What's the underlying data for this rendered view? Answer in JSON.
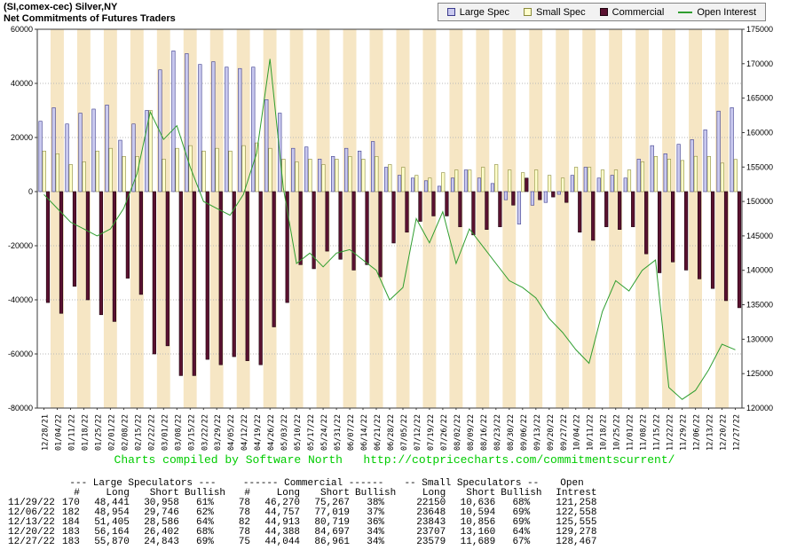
{
  "header": {
    "title_line1": "(SI,comex-cec) Silver,NY",
    "title_line2": "Net Commitments of Futures Traders"
  },
  "credit": {
    "text": "Charts compiled by Software North",
    "url": "http://cotpricecharts.com/commitmentscurrent/",
    "color": "#00cc00"
  },
  "chart_data": {
    "type": "combo",
    "title": "Net Commitments of Futures Traders",
    "left_axis": {
      "min": -80000,
      "max": 60000,
      "ticks": [
        60000,
        40000,
        20000,
        0,
        -20000,
        -40000,
        -60000,
        -80000
      ]
    },
    "right_axis": {
      "min": 120000,
      "max": 175000,
      "ticks": [
        175000,
        170000,
        165000,
        160000,
        155000,
        150000,
        145000,
        140000,
        135000,
        130000,
        125000,
        120000
      ]
    },
    "colors": {
      "stripe": "#f6e6c4",
      "grid": "#b8b8b8",
      "axis": "#3a3a3a",
      "background": "#ffffff"
    },
    "categories": [
      "12/28/21",
      "01/04/22",
      "01/11/22",
      "01/18/22",
      "01/25/22",
      "02/01/22",
      "02/08/22",
      "02/15/22",
      "02/22/22",
      "03/01/22",
      "03/08/22",
      "03/15/22",
      "03/22/22",
      "03/29/22",
      "04/05/22",
      "04/12/22",
      "04/19/22",
      "04/26/22",
      "05/03/22",
      "05/10/22",
      "05/17/22",
      "05/24/22",
      "05/31/22",
      "06/07/22",
      "06/14/22",
      "06/21/22",
      "06/28/22",
      "07/05/22",
      "07/12/22",
      "07/19/22",
      "07/26/22",
      "08/02/22",
      "08/09/22",
      "08/16/22",
      "08/23/22",
      "08/30/22",
      "09/06/22",
      "09/13/22",
      "09/20/22",
      "09/27/22",
      "10/04/22",
      "10/11/22",
      "10/18/22",
      "10/25/22",
      "11/01/22",
      "11/08/22",
      "11/15/22",
      "11/22/22",
      "11/29/22",
      "12/06/22",
      "12/13/22",
      "12/20/22",
      "12/27/22"
    ],
    "series": [
      {
        "name": "Large Spec",
        "slug": "large-spec",
        "type": "bar",
        "color": "#c9c9ef",
        "border": "#3a3a8c",
        "values": [
          26000,
          31000,
          25000,
          29000,
          30500,
          32000,
          19000,
          25000,
          30000,
          45000,
          52000,
          51000,
          47000,
          48000,
          46000,
          45500,
          46000,
          34000,
          29000,
          16000,
          16500,
          12000,
          13000,
          16000,
          15000,
          18500,
          9000,
          6000,
          5000,
          4000,
          2000,
          5000,
          8000,
          5000,
          3000,
          -3000,
          -12000,
          -5000,
          -4000,
          -1000,
          6000,
          9000,
          5000,
          6000,
          5000,
          12000,
          17000,
          14000,
          17483,
          19208,
          22819,
          29762,
          31027
        ]
      },
      {
        "name": "Small Spec",
        "slug": "small-spec",
        "type": "bar",
        "color": "#ffffcc",
        "border": "#8a8a3a",
        "values": [
          15000,
          14000,
          10000,
          11000,
          15000,
          16000,
          13000,
          13000,
          30000,
          12000,
          16000,
          17000,
          15000,
          16000,
          15000,
          17000,
          18000,
          16000,
          12000,
          11000,
          12000,
          10000,
          12000,
          13000,
          12000,
          13000,
          10000,
          9000,
          6000,
          5000,
          7000,
          8000,
          8000,
          9000,
          10000,
          8000,
          7000,
          8000,
          6000,
          5000,
          9000,
          9000,
          8000,
          8000,
          8000,
          11000,
          13000,
          12000,
          11514,
          13054,
          12987,
          10547,
          11890
        ]
      },
      {
        "name": "Commercial",
        "slug": "commercial",
        "type": "bar",
        "color": "#5a1130",
        "border": "#1f0510",
        "values": [
          -41000,
          -45000,
          -35000,
          -40000,
          -45500,
          -48000,
          -32000,
          -38000,
          -60000,
          -57000,
          -68000,
          -68000,
          -62000,
          -64000,
          -61000,
          -62500,
          -64000,
          -50000,
          -41000,
          -27000,
          -28500,
          -22000,
          -25000,
          -29000,
          -27000,
          -31500,
          -19000,
          -15000,
          -11000,
          -9000,
          -9000,
          -13000,
          -16000,
          -14000,
          -13000,
          -5000,
          5000,
          -3000,
          -2000,
          -4000,
          -15000,
          -18000,
          -13000,
          -14000,
          -13000,
          -23000,
          -30000,
          -26000,
          -28997,
          -32262,
          -35806,
          -40309,
          -42917
        ]
      },
      {
        "name": "Open Interest",
        "slug": "open-interest",
        "type": "line",
        "axis": "right",
        "color": "#2f9e2f",
        "values": [
          151000,
          149000,
          147000,
          146000,
          145000,
          146000,
          149000,
          154000,
          163000,
          159000,
          161000,
          155000,
          150000,
          149000,
          148000,
          151000,
          157000,
          170700,
          152000,
          141000,
          142500,
          140500,
          142500,
          143000,
          141500,
          140000,
          135700,
          137500,
          147500,
          144000,
          148500,
          141000,
          146000,
          143500,
          141000,
          138500,
          137500,
          136000,
          133000,
          131000,
          128500,
          126500,
          134000,
          138500,
          137000,
          140000,
          141500,
          123000,
          121258,
          122558,
          125555,
          129278,
          128467
        ]
      }
    ]
  },
  "table": {
    "group_headers": [
      "--- Large Speculators ---",
      "------ Commercial ------",
      "-- Small Speculators --",
      "Open"
    ],
    "col_headers": [
      "#",
      "Long",
      "Short",
      "Bullish",
      "#",
      "Long",
      "Short",
      "Bullish",
      "Long",
      "Short",
      "Bullish",
      "Intrest"
    ],
    "rows": [
      [
        "11/29/22",
        "170",
        "48,441",
        "30,958",
        "61%",
        "78",
        "46,270",
        "75,267",
        "38%",
        "22150",
        "10,636",
        "68%",
        "121,258"
      ],
      [
        "12/06/22",
        "182",
        "48,954",
        "29,746",
        "62%",
        "78",
        "44,757",
        "77,019",
        "37%",
        "23648",
        "10,594",
        "69%",
        "122,558"
      ],
      [
        "12/13/22",
        "184",
        "51,405",
        "28,586",
        "64%",
        "82",
        "44,913",
        "80,719",
        "36%",
        "23843",
        "10,856",
        "69%",
        "125,555"
      ],
      [
        "12/20/22",
        "183",
        "56,164",
        "26,402",
        "68%",
        "78",
        "44,388",
        "84,697",
        "34%",
        "23707",
        "13,160",
        "64%",
        "129,278"
      ],
      [
        "12/27/22",
        "183",
        "55,870",
        "24,843",
        "69%",
        "75",
        "44,044",
        "86,961",
        "34%",
        "23579",
        "11,689",
        "67%",
        "128,467"
      ]
    ]
  }
}
